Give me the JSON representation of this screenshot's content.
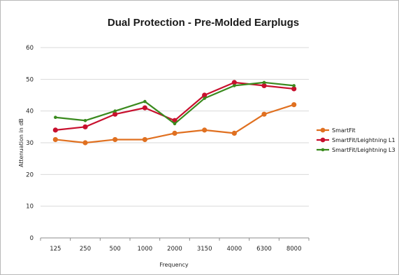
{
  "chart_data": {
    "type": "line",
    "title": "Dual Protection - Pre-Molded Earplugs",
    "xlabel": "Frequency",
    "ylabel": "Attenuation in dB",
    "categories": [
      "125",
      "250",
      "500",
      "1000",
      "2000",
      "3150",
      "4000",
      "6300",
      "8000"
    ],
    "ylim": [
      0,
      60
    ],
    "yticks": [
      0,
      10,
      20,
      30,
      40,
      50,
      60
    ],
    "grid": true,
    "legend_position": "right",
    "series": [
      {
        "name": "SmartFit",
        "color": "#e07020",
        "values": [
          31,
          30,
          31,
          31,
          33,
          34,
          33,
          39,
          42
        ]
      },
      {
        "name": "SmartFit/Leightning L1",
        "color": "#c8102e",
        "values": [
          34,
          35,
          39,
          41,
          37,
          45,
          49,
          48,
          47
        ]
      },
      {
        "name": "SmartFit/Leightning L3",
        "color": "#3a8a1e",
        "values": [
          38,
          37,
          40,
          43,
          36,
          44,
          48,
          49,
          48
        ]
      }
    ]
  }
}
